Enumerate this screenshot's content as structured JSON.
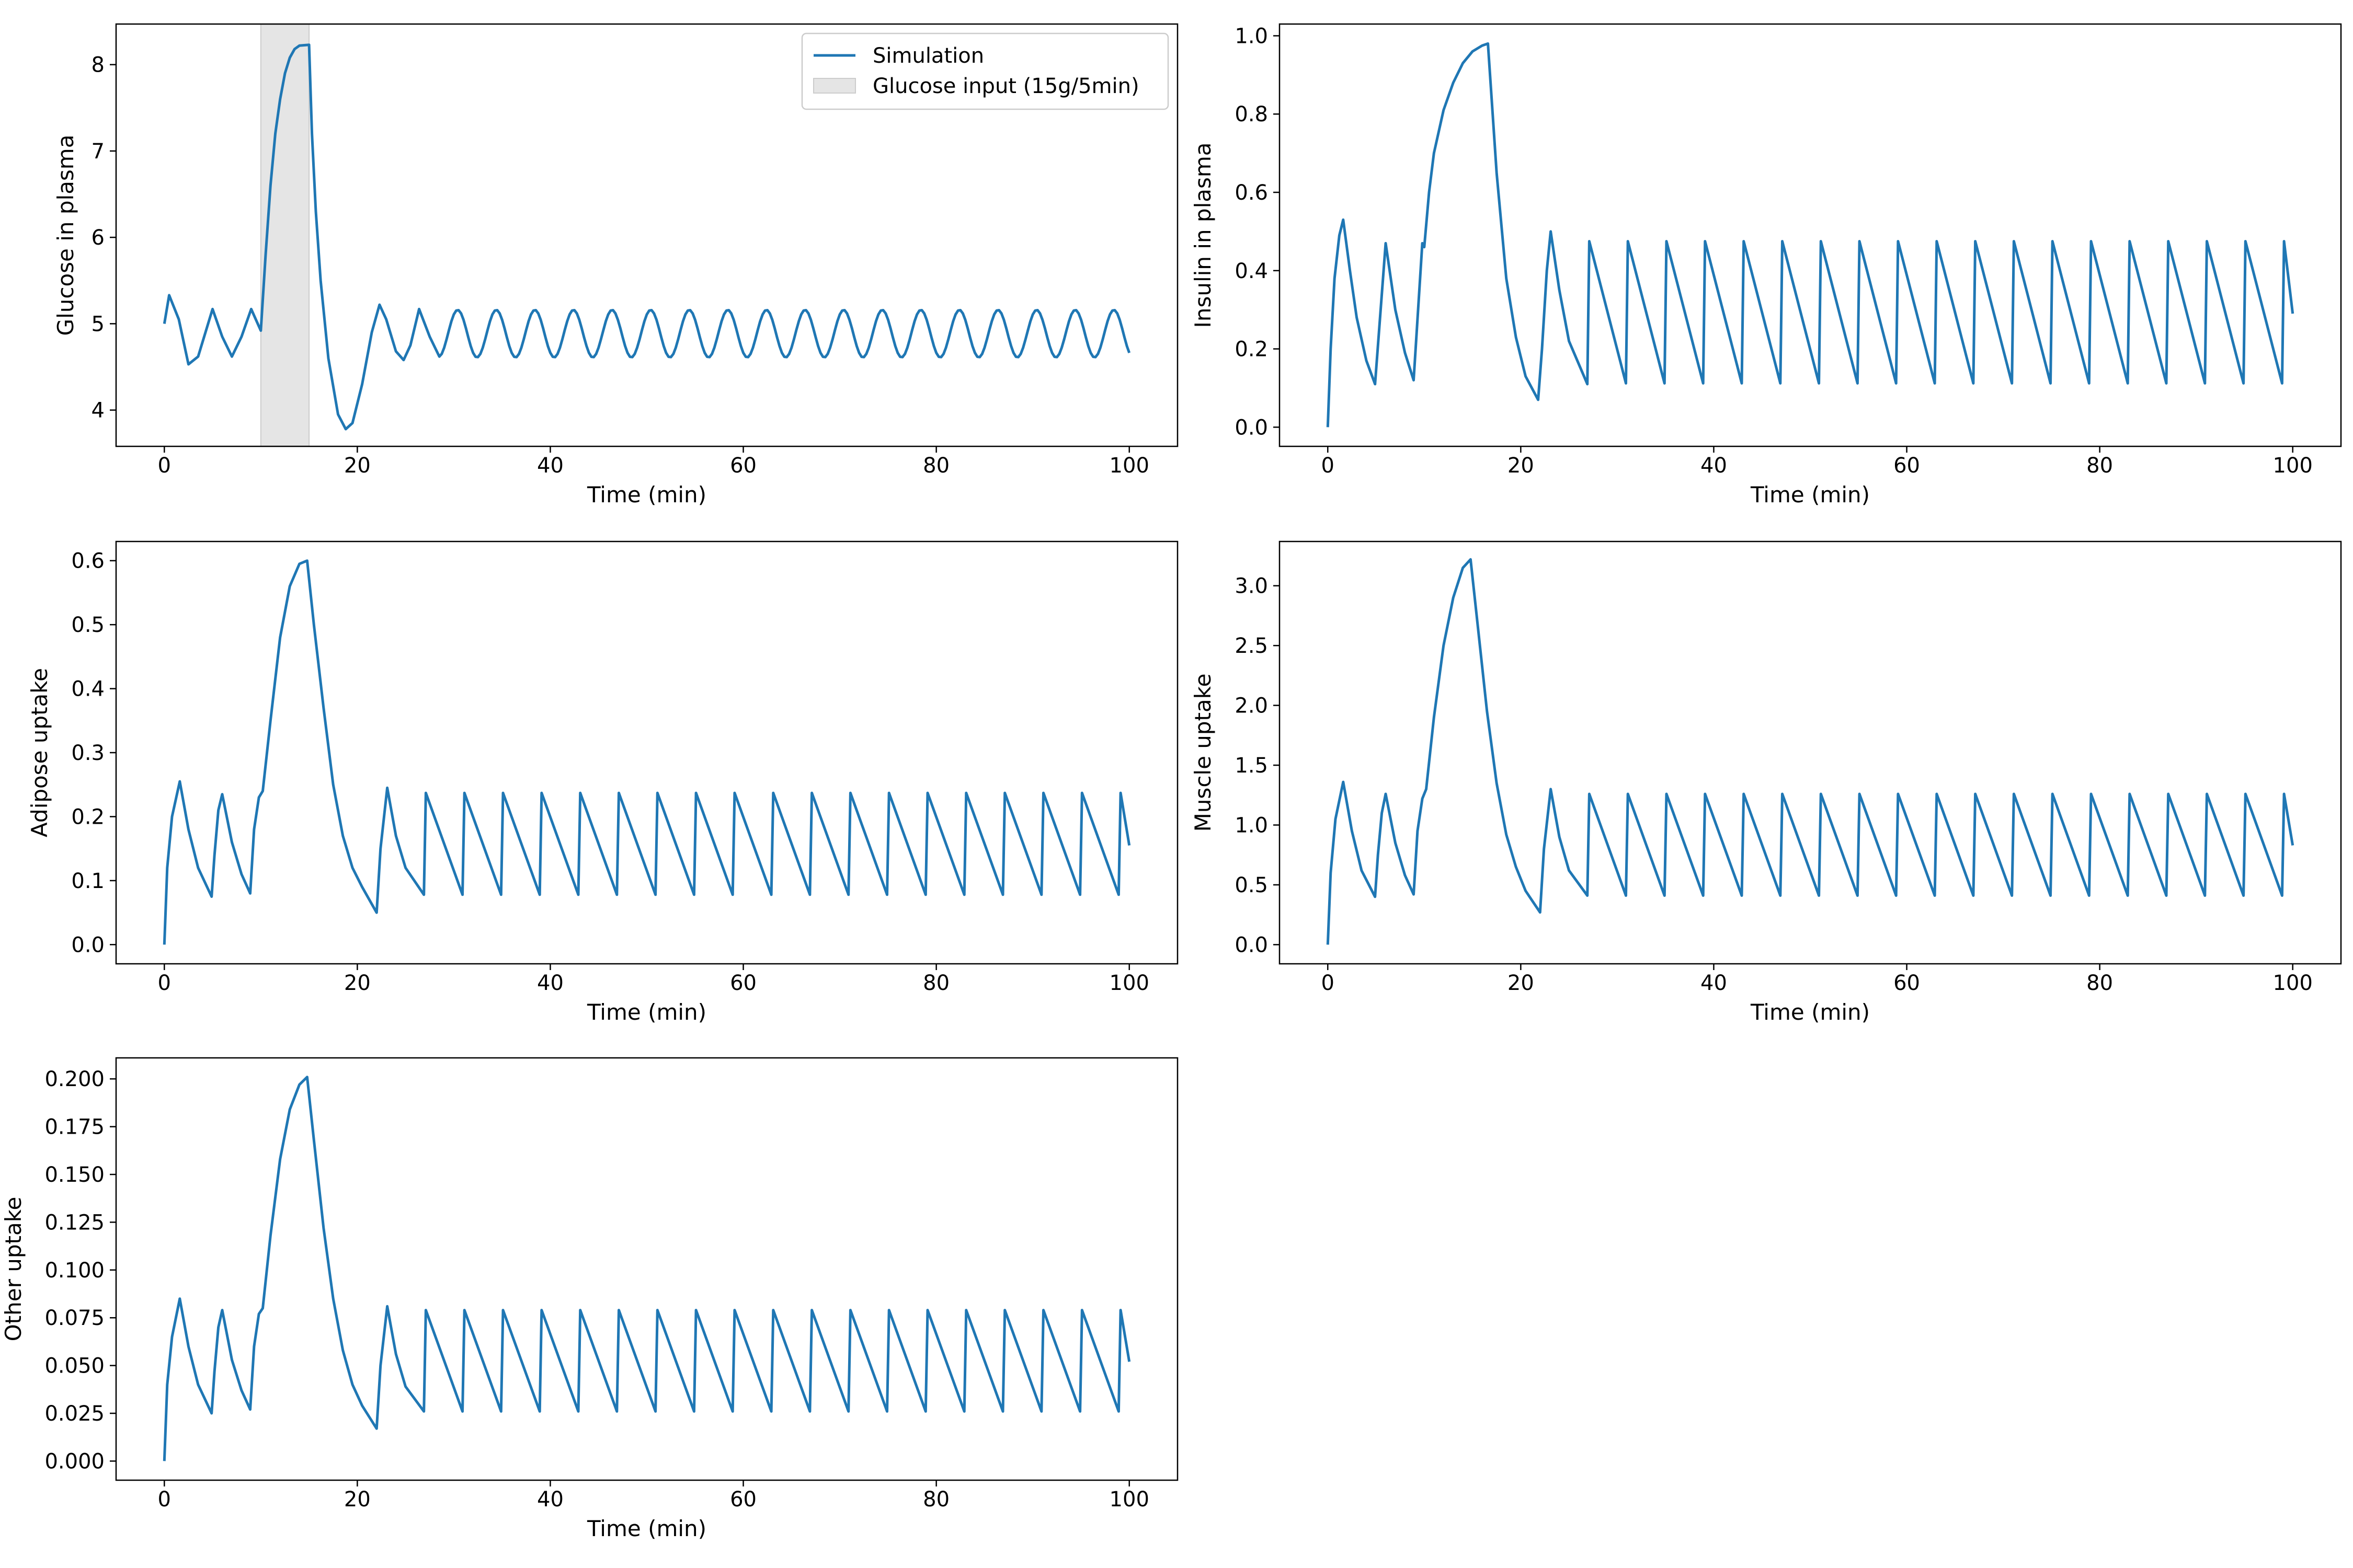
{
  "figure": {
    "line_color": "#1f77b4",
    "shade_color": "#e5e5e5"
  },
  "chart_data": [
    {
      "id": "glucose",
      "type": "line",
      "xlabel": "Time (min)",
      "ylabel": "Glucose in plasma",
      "xlim": [
        -5,
        105
      ],
      "ylim": [
        3.58,
        8.47
      ],
      "xticks": [
        0,
        20,
        40,
        60,
        80,
        100
      ],
      "yticks": [
        4,
        5,
        6,
        7,
        8
      ],
      "yticklabels": [
        "4",
        "5",
        "6",
        "7",
        "8"
      ],
      "shaded_region": {
        "x0": 10,
        "x1": 15,
        "label": "Glucose input (15g/5min)"
      },
      "legend": {
        "position": "top-right",
        "entries": [
          "Simulation",
          "Glucose input (15g/5min)"
        ]
      },
      "series": [
        {
          "name": "Simulation",
          "points": [
            [
              0,
              5.0
            ],
            [
              0.5,
              5.33
            ],
            [
              1.5,
              5.05
            ],
            [
              2.5,
              4.53
            ],
            [
              3.5,
              4.62
            ],
            [
              5,
              5.17
            ],
            [
              6,
              4.85
            ],
            [
              7,
              4.62
            ],
            [
              8,
              4.85
            ],
            [
              9,
              5.17
            ],
            [
              10,
              4.92
            ],
            [
              10.5,
              5.8
            ],
            [
              11,
              6.6
            ],
            [
              11.5,
              7.2
            ],
            [
              12,
              7.6
            ],
            [
              12.5,
              7.9
            ],
            [
              13,
              8.08
            ],
            [
              13.5,
              8.18
            ],
            [
              14,
              8.22
            ],
            [
              15,
              8.23
            ],
            [
              15.3,
              7.2
            ],
            [
              15.7,
              6.3
            ],
            [
              16.2,
              5.5
            ],
            [
              17,
              4.6
            ],
            [
              18,
              3.95
            ],
            [
              18.8,
              3.78
            ],
            [
              19.5,
              3.85
            ],
            [
              20.5,
              4.3
            ],
            [
              21.5,
              4.9
            ],
            [
              22.3,
              5.22
            ],
            [
              23,
              5.05
            ],
            [
              24,
              4.68
            ],
            [
              24.8,
              4.58
            ],
            [
              25.5,
              4.75
            ],
            [
              26.4,
              5.17
            ],
            [
              27.5,
              4.85
            ],
            [
              28.5,
              4.62
            ]
          ]
        }
      ],
      "periodic": {
        "from": 28.5,
        "to": 100,
        "period": 4.0,
        "first_peak": 30.4,
        "peak": 5.16,
        "trough": 4.61
      }
    },
    {
      "id": "insulin",
      "type": "line",
      "xlabel": "Time (min)",
      "ylabel": "Insulin in plasma",
      "xlim": [
        -5,
        105
      ],
      "ylim": [
        -0.049,
        1.03
      ],
      "xticks": [
        0,
        20,
        40,
        60,
        80,
        100
      ],
      "yticks": [
        0,
        0.2,
        0.4,
        0.6,
        0.8,
        1.0
      ],
      "yticklabels": [
        "0.0",
        "0.2",
        "0.4",
        "0.6",
        "0.8",
        "1.0"
      ],
      "series": [
        {
          "name": "Simulation",
          "points": [
            [
              0,
              0.0
            ],
            [
              0.3,
              0.2
            ],
            [
              0.7,
              0.38
            ],
            [
              1.2,
              0.49
            ],
            [
              1.6,
              0.53
            ],
            [
              2.3,
              0.4
            ],
            [
              3,
              0.28
            ],
            [
              4,
              0.17
            ],
            [
              4.9,
              0.11
            ],
            [
              6,
              0.47
            ],
            [
              7,
              0.3
            ],
            [
              8,
              0.19
            ],
            [
              8.9,
              0.12
            ],
            [
              9.8,
              0.47
            ],
            [
              10,
              0.46
            ],
            [
              10.5,
              0.6
            ],
            [
              11,
              0.7
            ],
            [
              12,
              0.81
            ],
            [
              13,
              0.88
            ],
            [
              14,
              0.93
            ],
            [
              15,
              0.96
            ],
            [
              16,
              0.975
            ],
            [
              16.6,
              0.98
            ],
            [
              17.5,
              0.65
            ],
            [
              18.5,
              0.38
            ],
            [
              19.5,
              0.23
            ],
            [
              20.5,
              0.13
            ],
            [
              21.8,
              0.07
            ],
            [
              22.2,
              0.2
            ],
            [
              22.7,
              0.4
            ],
            [
              23.1,
              0.5
            ],
            [
              24,
              0.35
            ],
            [
              25,
              0.22
            ],
            [
              26.9,
              0.11
            ]
          ]
        }
      ],
      "periodic": {
        "from": 26.9,
        "to": 100,
        "period": 4.0,
        "first_peak": 27.1,
        "peak": 0.475,
        "trough": 0.112,
        "end_value": 0.29
      }
    },
    {
      "id": "adipose",
      "type": "line",
      "xlabel": "Time (min)",
      "ylabel": "Adipose uptake",
      "xlim": [
        -5,
        105
      ],
      "ylim": [
        -0.03,
        0.63
      ],
      "xticks": [
        0,
        20,
        40,
        60,
        80,
        100
      ],
      "yticks": [
        0,
        0.1,
        0.2,
        0.3,
        0.4,
        0.5,
        0.6
      ],
      "yticklabels": [
        "0.0",
        "0.1",
        "0.2",
        "0.3",
        "0.4",
        "0.5",
        "0.6"
      ],
      "series": [
        {
          "name": "Simulation",
          "points": [
            [
              0,
              0.0
            ],
            [
              0.3,
              0.12
            ],
            [
              0.8,
              0.2
            ],
            [
              1.6,
              0.255
            ],
            [
              2.5,
              0.18
            ],
            [
              3.5,
              0.12
            ],
            [
              4.9,
              0.075
            ],
            [
              5.2,
              0.14
            ],
            [
              5.6,
              0.21
            ],
            [
              6,
              0.235
            ],
            [
              7,
              0.16
            ],
            [
              8,
              0.11
            ],
            [
              8.9,
              0.08
            ],
            [
              9.3,
              0.18
            ],
            [
              9.8,
              0.23
            ],
            [
              10.2,
              0.24
            ],
            [
              11,
              0.35
            ],
            [
              12,
              0.48
            ],
            [
              13,
              0.56
            ],
            [
              14,
              0.595
            ],
            [
              14.8,
              0.6
            ],
            [
              15.5,
              0.5
            ],
            [
              16.5,
              0.37
            ],
            [
              17.5,
              0.25
            ],
            [
              18.5,
              0.17
            ],
            [
              19.5,
              0.12
            ],
            [
              20.5,
              0.09
            ],
            [
              22,
              0.05
            ],
            [
              22.4,
              0.15
            ],
            [
              23.1,
              0.245
            ],
            [
              24,
              0.17
            ],
            [
              25,
              0.12
            ],
            [
              26.9,
              0.078
            ]
          ]
        }
      ],
      "periodic": {
        "from": 26.9,
        "to": 100,
        "period": 4.0,
        "first_peak": 27.1,
        "peak": 0.237,
        "trough": 0.078,
        "end_value": 0.155
      }
    },
    {
      "id": "muscle",
      "type": "line",
      "xlabel": "Time (min)",
      "ylabel": "Muscle uptake",
      "xlim": [
        -5,
        105
      ],
      "ylim": [
        -0.16,
        3.37
      ],
      "xticks": [
        0,
        20,
        40,
        60,
        80,
        100
      ],
      "yticks": [
        0,
        0.5,
        1.0,
        1.5,
        2.0,
        2.5,
        3.0
      ],
      "yticklabels": [
        "0.0",
        "0.5",
        "1.0",
        "1.5",
        "2.0",
        "2.5",
        "3.0"
      ],
      "series": [
        {
          "name": "Simulation",
          "points": [
            [
              0,
              0.0
            ],
            [
              0.3,
              0.6
            ],
            [
              0.8,
              1.05
            ],
            [
              1.6,
              1.36
            ],
            [
              2.5,
              0.95
            ],
            [
              3.5,
              0.62
            ],
            [
              4.9,
              0.4
            ],
            [
              5.2,
              0.75
            ],
            [
              5.6,
              1.1
            ],
            [
              6,
              1.26
            ],
            [
              7,
              0.85
            ],
            [
              8,
              0.58
            ],
            [
              8.9,
              0.42
            ],
            [
              9.3,
              0.95
            ],
            [
              9.8,
              1.22
            ],
            [
              10.2,
              1.3
            ],
            [
              11,
              1.9
            ],
            [
              12,
              2.5
            ],
            [
              13,
              2.9
            ],
            [
              14,
              3.15
            ],
            [
              14.8,
              3.22
            ],
            [
              15.5,
              2.7
            ],
            [
              16.5,
              1.95
            ],
            [
              17.5,
              1.35
            ],
            [
              18.5,
              0.92
            ],
            [
              19.5,
              0.65
            ],
            [
              20.5,
              0.45
            ],
            [
              22,
              0.27
            ],
            [
              22.4,
              0.8
            ],
            [
              23.1,
              1.3
            ],
            [
              24,
              0.9
            ],
            [
              25,
              0.62
            ],
            [
              26.9,
              0.41
            ]
          ]
        }
      ],
      "periodic": {
        "from": 26.9,
        "to": 100,
        "period": 4.0,
        "first_peak": 27.1,
        "peak": 1.26,
        "trough": 0.41,
        "end_value": 0.83
      }
    },
    {
      "id": "other",
      "type": "line",
      "xlabel": "Time (min)",
      "ylabel": "Other uptake",
      "xlim": [
        -5,
        105
      ],
      "ylim": [
        -0.01,
        0.211
      ],
      "xticks": [
        0,
        20,
        40,
        60,
        80,
        100
      ],
      "yticks": [
        0,
        0.025,
        0.05,
        0.075,
        0.1,
        0.125,
        0.15,
        0.175,
        0.2
      ],
      "yticklabels": [
        "0.000",
        "0.025",
        "0.050",
        "0.075",
        "0.100",
        "0.125",
        "0.150",
        "0.175",
        "0.200"
      ],
      "series": [
        {
          "name": "Simulation",
          "points": [
            [
              0,
              0.0
            ],
            [
              0.3,
              0.04
            ],
            [
              0.8,
              0.065
            ],
            [
              1.6,
              0.085
            ],
            [
              2.5,
              0.06
            ],
            [
              3.5,
              0.04
            ],
            [
              4.9,
              0.025
            ],
            [
              5.2,
              0.047
            ],
            [
              5.6,
              0.07
            ],
            [
              6,
              0.079
            ],
            [
              7,
              0.053
            ],
            [
              8,
              0.037
            ],
            [
              8.9,
              0.027
            ],
            [
              9.3,
              0.06
            ],
            [
              9.8,
              0.077
            ],
            [
              10.2,
              0.08
            ],
            [
              11,
              0.118
            ],
            [
              12,
              0.158
            ],
            [
              13,
              0.184
            ],
            [
              14,
              0.197
            ],
            [
              14.8,
              0.201
            ],
            [
              15.5,
              0.168
            ],
            [
              16.5,
              0.122
            ],
            [
              17.5,
              0.085
            ],
            [
              18.5,
              0.058
            ],
            [
              19.5,
              0.04
            ],
            [
              20.5,
              0.029
            ],
            [
              22,
              0.017
            ],
            [
              22.4,
              0.05
            ],
            [
              23.1,
              0.081
            ],
            [
              24,
              0.056
            ],
            [
              25,
              0.039
            ],
            [
              26.9,
              0.026
            ]
          ]
        }
      ],
      "periodic": {
        "from": 26.9,
        "to": 100,
        "period": 4.0,
        "first_peak": 27.1,
        "peak": 0.079,
        "trough": 0.026,
        "end_value": 0.052
      }
    }
  ]
}
